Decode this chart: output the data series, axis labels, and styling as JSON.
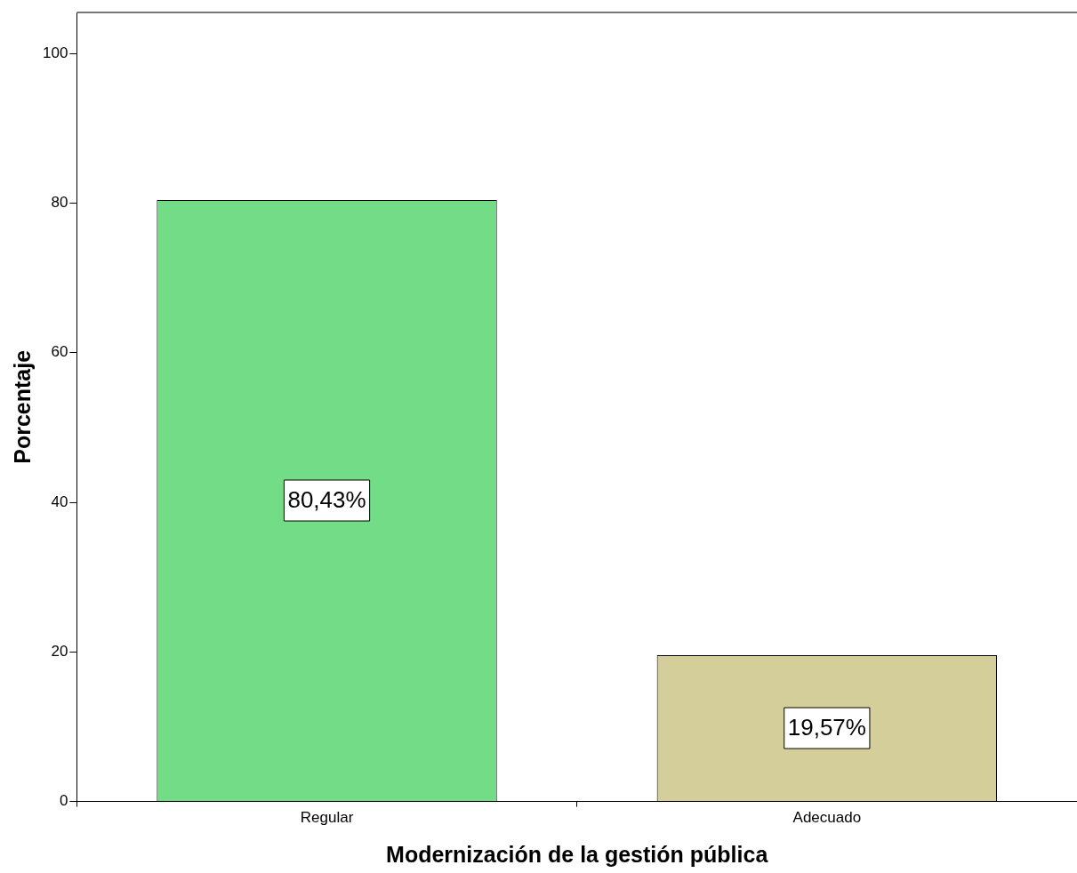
{
  "chart_data": {
    "type": "bar",
    "xlabel": "Modernización de la gestión pública",
    "ylabel": "Porcentaje",
    "categories": [
      "Regular",
      "Adecuado"
    ],
    "values": [
      80.43,
      19.57
    ],
    "colors": [
      "#72dd86",
      "#d4cf9a"
    ],
    "value_labels": [
      "80,43%",
      "19,57%"
    ],
    "ylim": [
      0,
      105.5
    ],
    "yticks": [
      0,
      20,
      40,
      60,
      80,
      100
    ],
    "grid": false,
    "legend": false
  }
}
